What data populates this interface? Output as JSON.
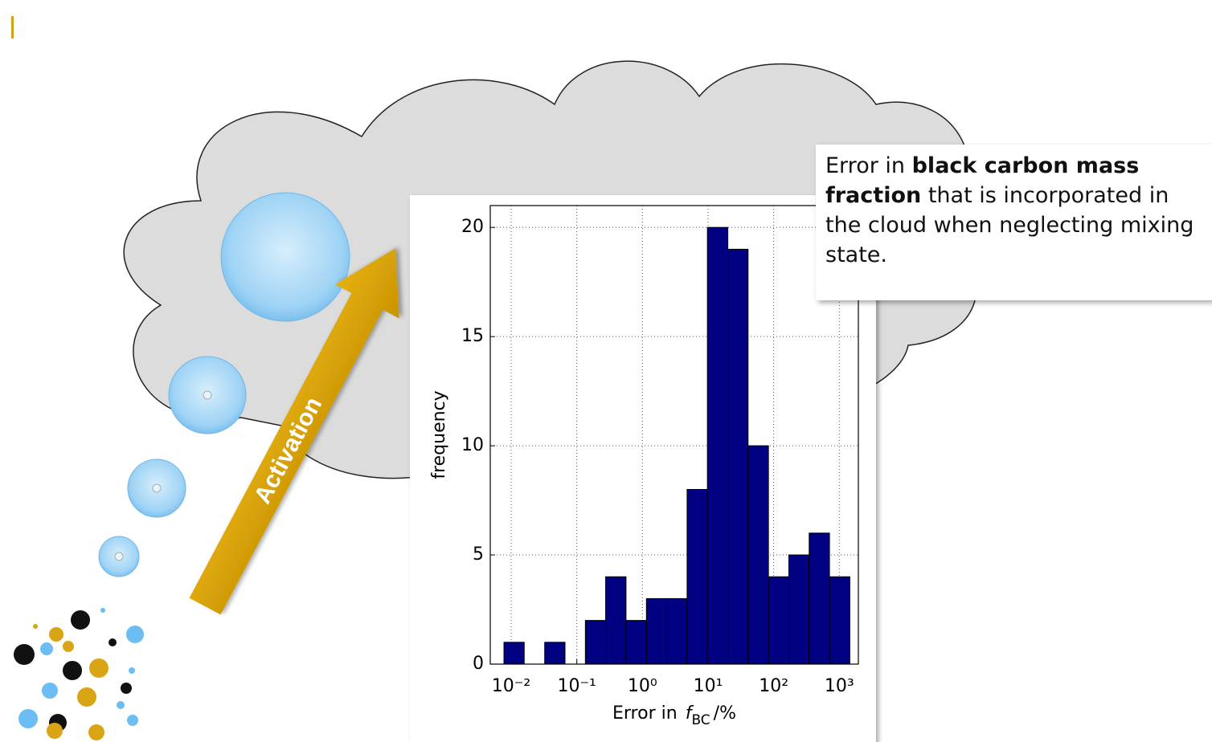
{
  "slide": {
    "arrow_label": "Activation",
    "note": {
      "prefix": "Error in",
      "bold": "black carbon mass fraction",
      "suffix": "that is incorporated in the cloud when neglecting mixing state."
    }
  },
  "chart_data": {
    "type": "histogram",
    "xlabel": "Error in",
    "xlabel_symbol": "f",
    "xlabel_subscript": "BC",
    "xlabel_unit": "/%",
    "ylabel": "frequency",
    "bins": [
      0.00776,
      0.0158,
      0.0324,
      0.0661,
      0.135,
      0.275,
      0.562,
      1.15,
      2.34,
      4.79,
      9.77,
      20.0,
      40.7,
      83.2,
      170,
      347,
      708,
      1445
    ],
    "values": [
      1,
      0,
      1,
      0,
      2,
      4,
      2,
      3,
      3,
      8,
      20,
      19,
      10,
      4,
      5,
      6,
      4
    ],
    "color": "#000080",
    "xscale": "log",
    "xlim": [
      0.0048,
      1950
    ],
    "xticks": [
      {
        "value": 0.01,
        "label": "10⁻²"
      },
      {
        "value": 0.1,
        "label": "10⁻¹"
      },
      {
        "value": 1,
        "label": "10⁰"
      },
      {
        "value": 10,
        "label": "10¹"
      },
      {
        "value": 100,
        "label": "10²"
      },
      {
        "value": 1000,
        "label": "10³"
      }
    ],
    "ylim": [
      0,
      21
    ],
    "yticks": [
      0,
      5,
      10,
      15,
      20
    ],
    "grid": true
  }
}
